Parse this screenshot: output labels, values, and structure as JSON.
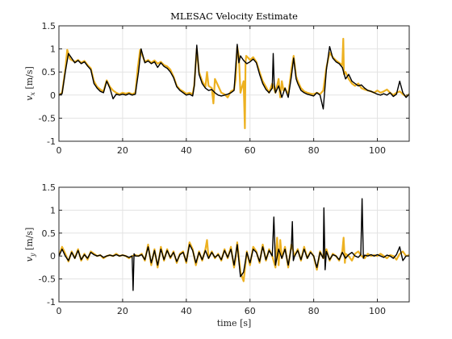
{
  "figure": {
    "title": "MLESAC Velocity Estimate",
    "background": "#ffffff"
  },
  "chart_data": [
    {
      "type": "line",
      "title": "MLESAC Velocity Estimate",
      "xlabel": "",
      "ylabel": "v_x [m/s]",
      "ylabel_parts": {
        "var": "v",
        "sub": "x",
        "unit": "[m/s]"
      },
      "xlim": [
        0,
        110
      ],
      "ylim": [
        -1,
        1.5
      ],
      "xticks": [
        0,
        20,
        40,
        60,
        80,
        100
      ],
      "yticks": [
        -1,
        -0.5,
        0,
        0.5,
        1,
        1.5
      ],
      "xtick_labels": [
        "0",
        "20",
        "40",
        "60",
        "80",
        "100"
      ],
      "ytick_labels": [
        "-1",
        "-0.5",
        "0",
        "0.5",
        "1",
        "1.5"
      ],
      "grid": true,
      "legend": "none",
      "series": [
        {
          "color": "#EDB120",
          "x": [
            0,
            1,
            2,
            2.6,
            3.5,
            5,
            6,
            7,
            8,
            9,
            10,
            11,
            12,
            13,
            14,
            15,
            16,
            17,
            18,
            19,
            20,
            21,
            22,
            23,
            24,
            24.8,
            25.5,
            27,
            28,
            29,
            30,
            31,
            32,
            33,
            34,
            35,
            36,
            37,
            38,
            39,
            40,
            41,
            42,
            42.5,
            43.3,
            44,
            45,
            46,
            46.5,
            47,
            48,
            48.5,
            49,
            50,
            51,
            52,
            53,
            54,
            55,
            55.5,
            56,
            56.5,
            57,
            58,
            58.4,
            58.6,
            58.8,
            59.5,
            60,
            61,
            62,
            63,
            64,
            65,
            66,
            67,
            68,
            69,
            69.5,
            70,
            70.5,
            71,
            72,
            73,
            73.7,
            74.5,
            75,
            76,
            77,
            78,
            79,
            80,
            81,
            82,
            83,
            84,
            85,
            86,
            87,
            88,
            89,
            89.3,
            89.5,
            90,
            91,
            92,
            93,
            94,
            95,
            96,
            97,
            98,
            99,
            100,
            101,
            102,
            103,
            104,
            105,
            106,
            107,
            108,
            109,
            110
          ],
          "y": [
            0.0,
            0.05,
            0.55,
            0.98,
            0.78,
            0.72,
            0.76,
            0.7,
            0.74,
            0.65,
            0.58,
            0.3,
            0.18,
            0.12,
            0.08,
            0.32,
            0.18,
            0.1,
            0.05,
            0.02,
            0.05,
            0.03,
            0.05,
            0.02,
            0.05,
            0.6,
            0.98,
            0.72,
            0.76,
            0.7,
            0.75,
            0.68,
            0.72,
            0.65,
            0.62,
            0.55,
            0.4,
            0.2,
            0.12,
            0.08,
            0.03,
            0.05,
            0.02,
            0.22,
            1.0,
            0.5,
            0.3,
            0.18,
            0.5,
            0.2,
            0.15,
            -0.18,
            0.35,
            0.2,
            0.05,
            0.02,
            -0.05,
            0.08,
            0.12,
            0.35,
            1.05,
            0.85,
            0.05,
            0.3,
            -0.72,
            0.7,
            0.85,
            0.8,
            0.76,
            0.82,
            0.72,
            0.5,
            0.3,
            0.18,
            0.05,
            0.25,
            0.05,
            0.35,
            -0.05,
            0.3,
            0.1,
            0.15,
            0.0,
            0.55,
            0.85,
            0.4,
            0.3,
            0.15,
            0.08,
            0.05,
            0.03,
            0.02,
            0.05,
            0.02,
            0.1,
            0.6,
            0.92,
            0.82,
            0.75,
            0.7,
            0.65,
            1.22,
            0.45,
            0.5,
            0.35,
            0.25,
            0.2,
            0.25,
            0.15,
            0.12,
            0.1,
            0.08,
            0.05,
            0.1,
            0.05,
            0.08,
            0.12,
            0.05,
            0.0,
            0.05,
            0.08,
            0.02,
            -0.03,
            0.02
          ]
        },
        {
          "color": "#000000",
          "x": [
            0,
            1,
            2,
            3,
            4,
            5,
            6,
            7,
            8,
            9,
            10,
            11,
            12,
            13,
            14,
            15,
            16,
            17,
            18,
            19,
            20,
            21,
            22,
            23,
            24,
            25,
            25.8,
            27,
            28,
            29,
            30,
            31,
            32,
            33,
            34,
            35,
            36,
            37,
            38,
            39,
            40,
            41,
            42,
            42.5,
            43.3,
            44,
            45,
            46,
            47,
            48,
            49,
            50,
            51,
            52,
            53,
            54,
            55,
            56,
            56.5,
            57,
            58,
            59,
            60,
            61,
            62,
            63,
            64,
            65,
            66,
            67,
            67.3,
            67.6,
            68,
            69,
            70,
            71,
            72,
            73,
            73.7,
            74.5,
            75,
            76,
            77,
            78,
            79,
            80,
            81,
            82,
            83,
            84,
            85,
            86,
            87,
            88,
            89,
            90,
            91,
            92,
            93,
            94,
            95,
            96,
            97,
            98,
            99,
            100,
            101,
            102,
            103,
            104,
            105,
            106,
            107,
            108,
            109,
            110
          ],
          "y": [
            0.0,
            0.03,
            0.5,
            0.9,
            0.8,
            0.7,
            0.75,
            0.68,
            0.72,
            0.63,
            0.55,
            0.25,
            0.15,
            0.08,
            0.05,
            0.3,
            0.15,
            -0.08,
            0.02,
            0.0,
            0.02,
            0.0,
            0.03,
            0.0,
            0.02,
            0.5,
            1.0,
            0.7,
            0.74,
            0.68,
            0.72,
            0.6,
            0.7,
            0.62,
            0.58,
            0.5,
            0.38,
            0.18,
            0.1,
            0.05,
            0.0,
            0.02,
            -0.02,
            0.2,
            1.08,
            0.45,
            0.25,
            0.15,
            0.1,
            0.12,
            0.05,
            0.0,
            -0.02,
            0.0,
            0.02,
            0.05,
            0.1,
            1.1,
            0.7,
            0.85,
            0.75,
            0.68,
            0.72,
            0.78,
            0.7,
            0.45,
            0.25,
            0.12,
            0.05,
            0.15,
            0.9,
            0.25,
            0.05,
            0.2,
            -0.05,
            0.15,
            -0.05,
            0.4,
            0.8,
            0.35,
            0.25,
            0.1,
            0.05,
            0.02,
            0.0,
            -0.02,
            0.05,
            0.0,
            -0.3,
            0.55,
            1.05,
            0.8,
            0.72,
            0.68,
            0.6,
            0.35,
            0.45,
            0.3,
            0.25,
            0.2,
            0.22,
            0.15,
            0.1,
            0.08,
            0.05,
            0.02,
            0.0,
            0.03,
            0.0,
            0.05,
            -0.03,
            0.02,
            0.3,
            0.05,
            -0.05,
            0.02
          ]
        }
      ]
    },
    {
      "type": "line",
      "title": "",
      "xlabel": "time [s]",
      "ylabel": "v_y [m/s]",
      "ylabel_parts": {
        "var": "v",
        "sub": "y",
        "unit": "[m/s]"
      },
      "xlim": [
        0,
        110
      ],
      "ylim": [
        -1,
        1.5
      ],
      "xticks": [
        0,
        20,
        40,
        60,
        80,
        100
      ],
      "yticks": [
        -1,
        -0.5,
        0,
        0.5,
        1,
        1.5
      ],
      "xtick_labels": [
        "0",
        "20",
        "40",
        "60",
        "80",
        "100"
      ],
      "ytick_labels": [
        "-1",
        "-0.5",
        "0",
        "0.5",
        "1",
        "1.5"
      ],
      "grid": true,
      "legend": "none",
      "series": [
        {
          "color": "#EDB120",
          "x": [
            0,
            1,
            2,
            3,
            4,
            5,
            6,
            7,
            8,
            9,
            10,
            11,
            12,
            13,
            14,
            15,
            16,
            17,
            18,
            19,
            20,
            21,
            22,
            23,
            24,
            25,
            26,
            27,
            28,
            29,
            30,
            31,
            32,
            33,
            34,
            35,
            36,
            37,
            38,
            39,
            40,
            41,
            42,
            43,
            44,
            45,
            46,
            46.5,
            47,
            48,
            49,
            50,
            51,
            52,
            53,
            54,
            55,
            55.5,
            56,
            57,
            58,
            59,
            60,
            61,
            62,
            63,
            64,
            65,
            66,
            67,
            68,
            68.5,
            69,
            69.5,
            70,
            71,
            72,
            73,
            74,
            75,
            76,
            77,
            78,
            79,
            80,
            81,
            82,
            83,
            84,
            85,
            86,
            87,
            88,
            89,
            89.4,
            89.8,
            90,
            91,
            92,
            93,
            94,
            95,
            96,
            97,
            98,
            99,
            100,
            101,
            102,
            103,
            104,
            105,
            106,
            107,
            108,
            109,
            110
          ],
          "y": [
            0.0,
            0.2,
            0.05,
            -0.12,
            0.1,
            -0.05,
            0.15,
            -0.1,
            0.05,
            -0.08,
            0.1,
            0.05,
            0.0,
            0.02,
            -0.05,
            0.0,
            0.02,
            0.0,
            0.05,
            0.0,
            0.02,
            0.0,
            -0.05,
            0.0,
            0.02,
            0.0,
            0.05,
            -0.1,
            0.25,
            -0.2,
            0.15,
            -0.25,
            0.2,
            -0.1,
            0.15,
            -0.05,
            0.1,
            -0.15,
            0.05,
            0.1,
            -0.15,
            0.3,
            0.15,
            -0.2,
            0.1,
            -0.1,
            0.15,
            0.35,
            -0.05,
            0.1,
            -0.05,
            0.05,
            -0.1,
            0.15,
            -0.05,
            0.2,
            -0.25,
            -0.05,
            0.3,
            -0.35,
            -0.55,
            0.1,
            -0.2,
            0.2,
            0.1,
            -0.15,
            0.25,
            -0.1,
            0.15,
            0.0,
            -0.25,
            0.4,
            -0.2,
            0.35,
            -0.05,
            0.2,
            -0.25,
            0.25,
            0.0,
            0.15,
            -0.1,
            0.2,
            -0.05,
            0.1,
            0.0,
            -0.3,
            0.1,
            -0.05,
            0.15,
            -0.1,
            0.05,
            0.0,
            -0.1,
            0.1,
            0.4,
            -0.15,
            0.05,
            0.0,
            -0.1,
            0.05,
            0.1,
            0.0,
            -0.05,
            0.05,
            0.0,
            0.02,
            0.0,
            0.05,
            0.0,
            -0.05,
            0.02,
            0.0,
            -0.08,
            0.05,
            0.1,
            0.0,
            0.02
          ]
        },
        {
          "color": "#000000",
          "x": [
            0,
            1,
            2,
            3,
            4,
            5,
            6,
            7,
            8,
            9,
            10,
            11,
            12,
            13,
            14,
            15,
            16,
            17,
            18,
            19,
            20,
            21,
            22,
            23,
            23.3,
            23.6,
            24,
            25,
            26,
            27,
            28,
            29,
            30,
            31,
            32,
            33,
            34,
            35,
            36,
            37,
            38,
            39,
            40,
            41,
            42,
            43,
            44,
            45,
            46,
            47,
            48,
            49,
            50,
            51,
            52,
            53,
            54,
            55,
            56,
            57,
            58,
            59,
            60,
            61,
            62,
            63,
            64,
            65,
            66,
            67,
            67.5,
            68,
            69,
            70,
            71,
            72,
            73,
            73.3,
            73.6,
            74,
            75,
            76,
            77,
            78,
            79,
            80,
            81,
            82,
            83,
            83.2,
            83.6,
            84,
            85,
            86,
            87,
            88,
            89,
            90,
            91,
            92,
            93,
            94,
            94.8,
            95.2,
            95.6,
            96,
            97,
            98,
            99,
            100,
            101,
            102,
            103,
            104,
            105,
            106,
            107,
            108,
            109,
            110
          ],
          "y": [
            0.0,
            0.15,
            0.0,
            -0.1,
            0.08,
            -0.05,
            0.12,
            -0.08,
            0.03,
            -0.05,
            0.08,
            0.03,
            0.0,
            0.02,
            -0.03,
            0.0,
            0.02,
            0.0,
            0.03,
            0.0,
            0.02,
            0.0,
            -0.03,
            0.0,
            -0.75,
            0.05,
            0.0,
            0.0,
            0.03,
            -0.08,
            0.2,
            -0.15,
            0.12,
            -0.2,
            0.15,
            -0.08,
            0.12,
            -0.03,
            0.08,
            -0.12,
            0.03,
            0.08,
            -0.12,
            0.25,
            0.12,
            -0.15,
            0.08,
            -0.08,
            0.12,
            -0.05,
            0.08,
            -0.03,
            0.03,
            -0.08,
            0.12,
            -0.03,
            0.15,
            -0.2,
            0.25,
            -0.45,
            -0.35,
            0.08,
            -0.15,
            0.15,
            0.08,
            -0.12,
            0.2,
            -0.08,
            0.12,
            0.0,
            0.85,
            -0.2,
            0.15,
            -0.05,
            0.15,
            -0.2,
            0.2,
            0.75,
            -0.1,
            0.0,
            0.12,
            -0.08,
            0.15,
            -0.05,
            0.08,
            0.0,
            -0.25,
            0.08,
            -0.05,
            1.05,
            -0.3,
            0.1,
            -0.08,
            0.03,
            0.0,
            -0.08,
            0.08,
            -0.05,
            0.03,
            0.08,
            0.0,
            -0.03,
            0.03,
            1.25,
            -0.05,
            0.02,
            0.0,
            0.03,
            0.0,
            0.03,
            0.0,
            -0.03,
            0.02,
            0.0,
            -0.05,
            0.03,
            0.2,
            -0.1,
            0.0,
            0.0
          ]
        }
      ]
    }
  ]
}
